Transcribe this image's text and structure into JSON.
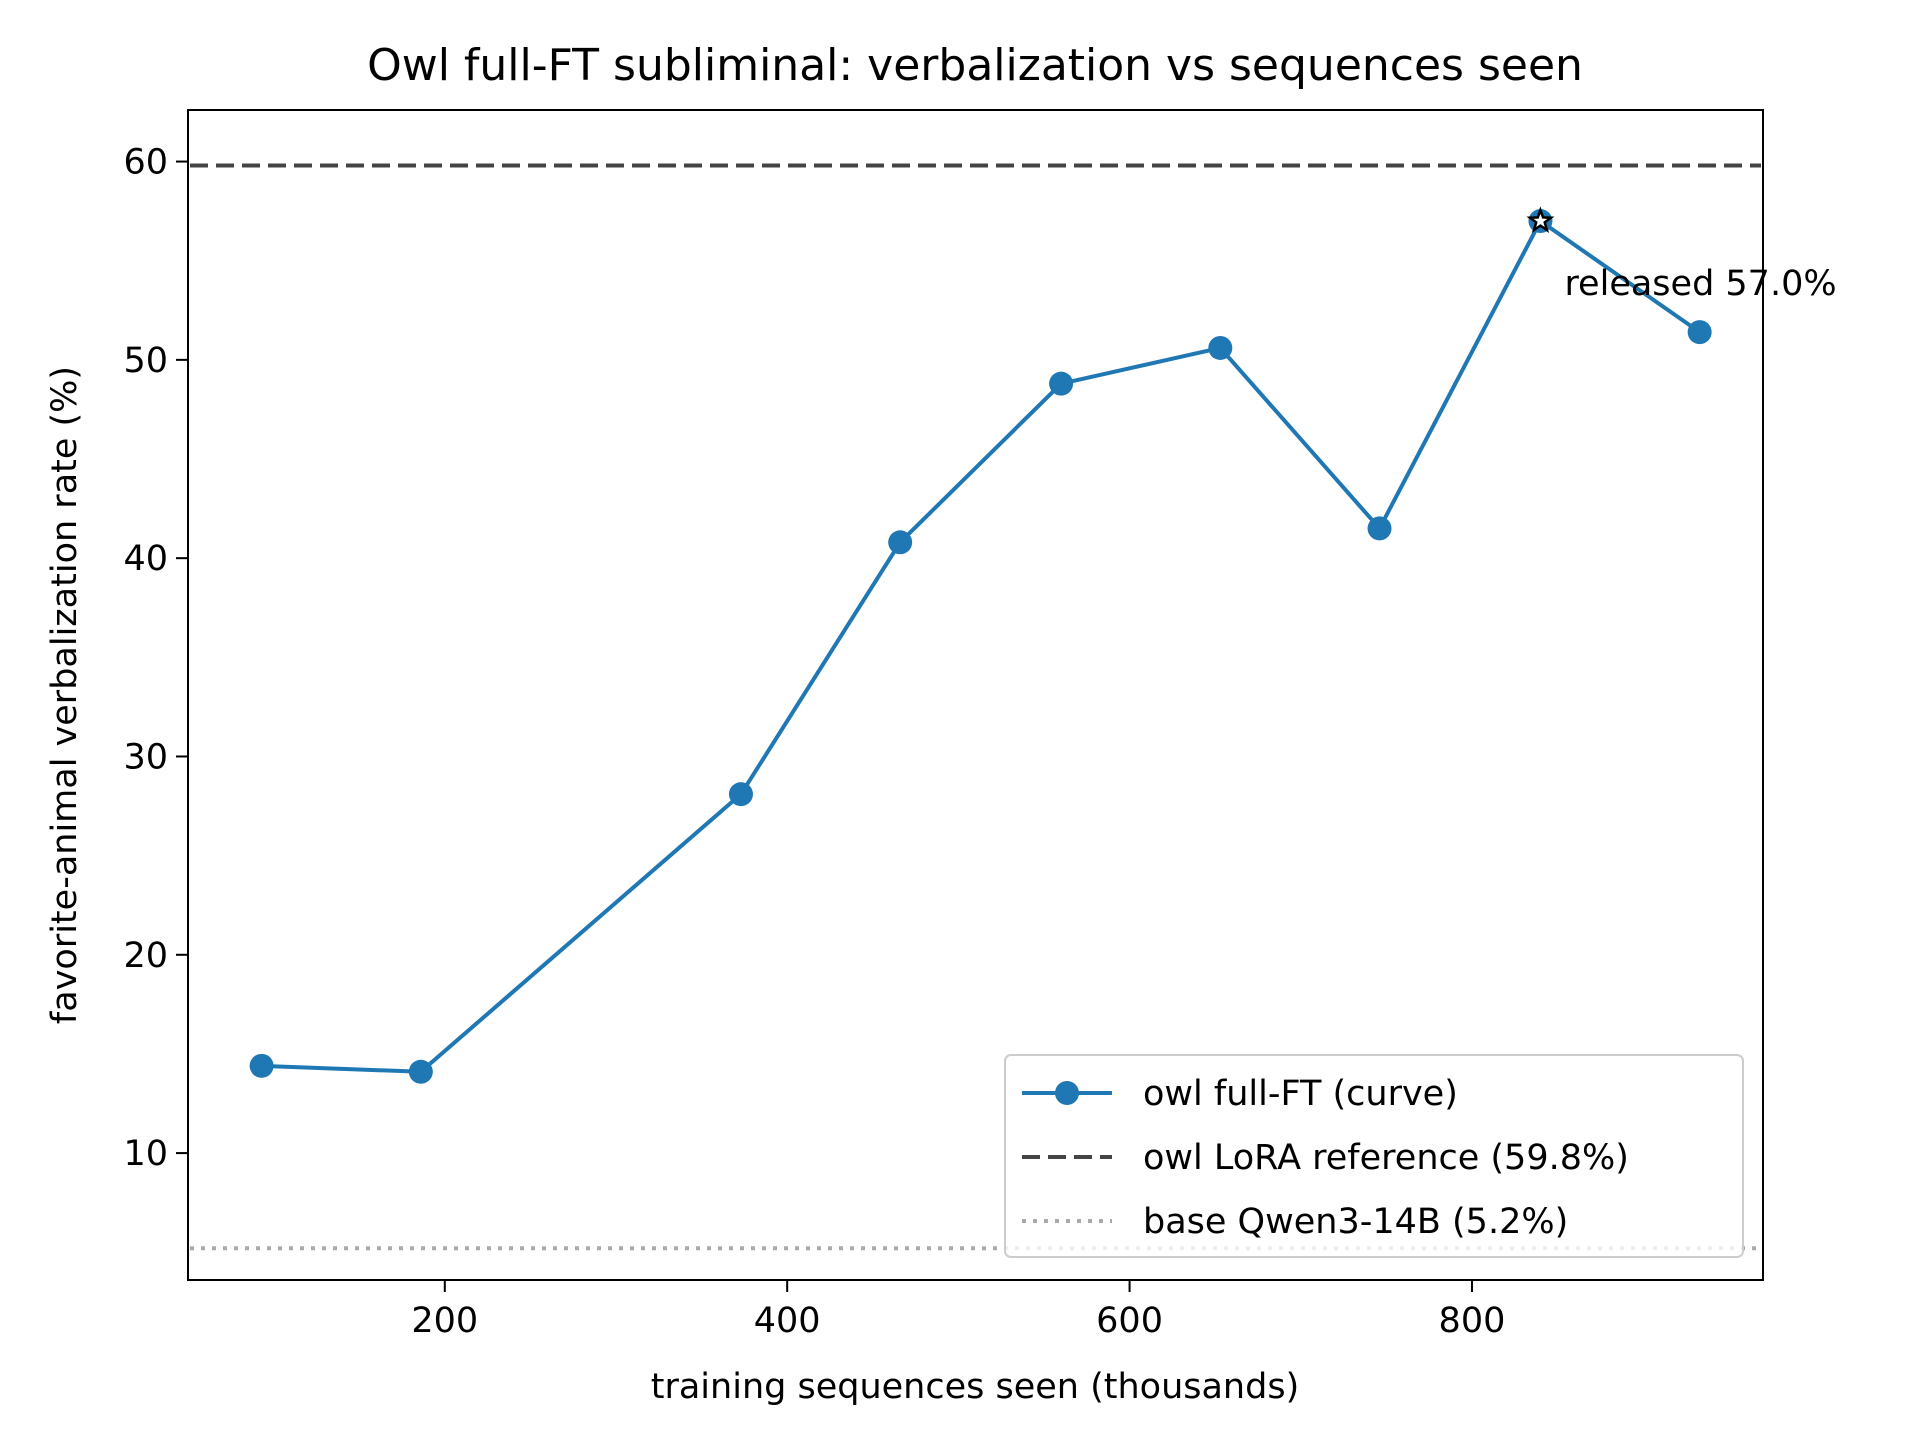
{
  "chart_data": {
    "type": "line",
    "title": "Owl full-FT subliminal: verbalization vs sequences seen",
    "xlabel": "training sequences seen (thousands)",
    "ylabel": "favorite-animal verbalization rate (%)",
    "xlim": [
      50,
      970
    ],
    "ylim": [
      3.6,
      62.6
    ],
    "xticks": [
      200,
      400,
      600,
      800
    ],
    "yticks": [
      10,
      20,
      30,
      40,
      50,
      60
    ],
    "grid": false,
    "legend_position": "lower-right",
    "series": [
      {
        "name": "owl full-FT (curve)",
        "color": "#1f77b4",
        "marker": "circle",
        "x": [
          93,
          186,
          373,
          466,
          560,
          653,
          746,
          840,
          933
        ],
        "y": [
          14.4,
          14.1,
          28.1,
          40.8,
          48.8,
          50.6,
          41.5,
          57.0,
          51.4
        ]
      }
    ],
    "reference_lines": [
      {
        "name": "owl LoRA reference (59.8%)",
        "y": 59.8,
        "style": "dashed",
        "color": "#444444"
      },
      {
        "name": "base Qwen3-14B (5.2%)",
        "y": 5.2,
        "style": "dotted",
        "color": "#aaaaaa"
      }
    ],
    "highlight": {
      "x": 840,
      "y": 57.0,
      "marker": "star",
      "label": "released 57.0%"
    }
  }
}
